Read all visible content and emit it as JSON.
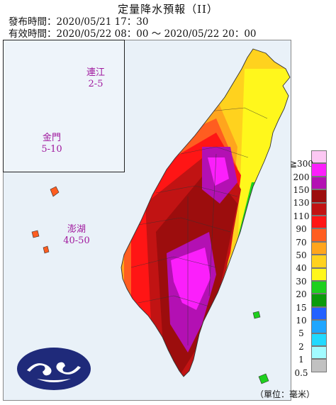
{
  "header": {
    "title": "定量降水預報（II）",
    "issue_label": "發布時間：",
    "issue_time": "2020/05/21 17：30",
    "valid_label": "有效時間：",
    "valid_from": "2020/05/22 08：00",
    "valid_sep": "～",
    "valid_to": "2020/05/22 20：00"
  },
  "islands": [
    {
      "name": "連江",
      "range": "2-5"
    },
    {
      "name": "金門",
      "range": "5-10"
    },
    {
      "name": "澎湖",
      "range": "40-50"
    }
  ],
  "legend": {
    "unit": "（單位：毫米）",
    "levels": [
      {
        "label": "≧300",
        "color": "#fcc8f3"
      },
      {
        "label": "200",
        "color": "#fb1ffb"
      },
      {
        "label": "150",
        "color": "#b310b3"
      },
      {
        "label": "130",
        "color": "#9c0d0d"
      },
      {
        "label": "110",
        "color": "#c11313"
      },
      {
        "label": "90",
        "color": "#ff1515"
      },
      {
        "label": "70",
        "color": "#ff5d20"
      },
      {
        "label": "50",
        "color": "#ffa51d"
      },
      {
        "label": "40",
        "color": "#ffd21e"
      },
      {
        "label": "30",
        "color": "#fff71c"
      },
      {
        "label": "20",
        "color": "#1ed01e"
      },
      {
        "label": "15",
        "color": "#0b9b0b"
      },
      {
        "label": "10",
        "color": "#2361ff"
      },
      {
        "label": "5",
        "color": "#1fa6ff"
      },
      {
        "label": "2",
        "color": "#21d9ff"
      },
      {
        "label": "1",
        "color": "#a2fbff"
      },
      {
        "label": "0.5",
        "color": "#c1c1c1"
      }
    ]
  },
  "icons": {
    "logo": "cwb-logo-icon"
  }
}
